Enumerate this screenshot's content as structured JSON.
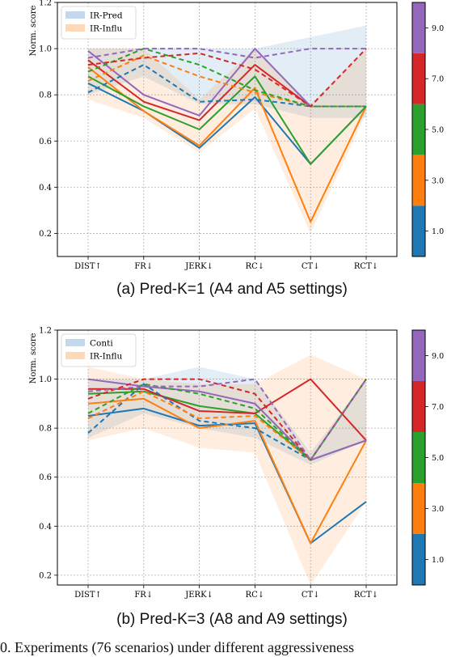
{
  "x_categories": [
    "DIST↑",
    "FR↓",
    "JERK↓",
    "RC↓",
    "CT↓",
    "RCT↓"
  ],
  "ylabel": "Norm. score",
  "colorbar": {
    "colors": [
      "#1f77b4",
      "#ff7f0e",
      "#2ca02c",
      "#d62728",
      "#9467bd"
    ],
    "tick_labels": [
      "1.0",
      "3.0",
      "5.0",
      "7.0",
      "9.0"
    ]
  },
  "captions": {
    "a": "(a) Pred-K=1 (A4 and A5 settings)",
    "b": "(b) Pred-K=3 (A8 and A9 settings)",
    "figure": "0.   Experiments (76 scenarios) under different aggressiveness"
  },
  "chart_data": [
    {
      "type": "line",
      "panel": "a",
      "ylim": [
        0.1,
        1.2
      ],
      "yticks": [
        0.2,
        0.4,
        0.6,
        0.8,
        1.0,
        1.2
      ],
      "grid": true,
      "legend": [
        {
          "label": "IR-Pred",
          "color": "#aac8e8",
          "style": "band"
        },
        {
          "label": "IR-Influ",
          "color": "#ffc89a",
          "style": "band"
        }
      ],
      "legend_position": "top-left",
      "bands": [
        {
          "name": "IR-Pred",
          "color": "#1f77b4",
          "upper": [
            1.0,
            1.0,
            1.0,
            1.0,
            1.05,
            1.1
          ],
          "lower": [
            0.8,
            0.88,
            0.76,
            0.76,
            0.7,
            0.7
          ]
        },
        {
          "name": "IR-Influ",
          "color": "#ff7f0e",
          "upper": [
            1.0,
            1.0,
            0.78,
            1.0,
            0.76,
            1.0
          ],
          "lower": [
            0.78,
            0.7,
            0.55,
            0.74,
            0.2,
            0.72
          ]
        }
      ],
      "series": [
        {
          "color": "#1f77b4",
          "dashed": false,
          "values": [
            0.85,
            0.73,
            0.57,
            0.79,
            0.5,
            0.75
          ]
        },
        {
          "color": "#ff7f0e",
          "dashed": false,
          "values": [
            0.92,
            0.73,
            0.58,
            0.83,
            0.25,
            0.75
          ]
        },
        {
          "color": "#2ca02c",
          "dashed": false,
          "values": [
            0.88,
            0.75,
            0.65,
            0.88,
            0.5,
            0.75
          ]
        },
        {
          "color": "#d62728",
          "dashed": false,
          "values": [
            0.95,
            0.77,
            0.69,
            0.93,
            0.75,
            0.75
          ]
        },
        {
          "color": "#9467bd",
          "dashed": false,
          "values": [
            0.99,
            0.8,
            0.71,
            1.0,
            0.75,
            0.75
          ]
        },
        {
          "color": "#1f77b4",
          "dashed": true,
          "values": [
            0.81,
            0.93,
            0.77,
            0.78,
            0.75,
            0.75
          ]
        },
        {
          "color": "#ff7f0e",
          "dashed": true,
          "values": [
            0.86,
            0.97,
            0.88,
            0.81,
            0.75,
            0.75
          ]
        },
        {
          "color": "#2ca02c",
          "dashed": true,
          "values": [
            0.9,
            1.0,
            0.93,
            0.82,
            0.75,
            0.75
          ]
        },
        {
          "color": "#d62728",
          "dashed": true,
          "values": [
            0.93,
            0.96,
            0.98,
            0.91,
            0.75,
            1.0
          ]
        },
        {
          "color": "#9467bd",
          "dashed": true,
          "values": [
            0.96,
            1.0,
            1.0,
            0.96,
            1.0,
            1.0
          ]
        }
      ]
    },
    {
      "type": "line",
      "panel": "b",
      "ylim": [
        0.16,
        1.2
      ],
      "yticks": [
        0.2,
        0.4,
        0.6,
        0.8,
        1.0,
        1.2
      ],
      "grid": true,
      "legend": [
        {
          "label": "Conti",
          "color": "#aac8e8",
          "style": "band"
        },
        {
          "label": "IR-Influ",
          "color": "#ffc89a",
          "style": "band"
        }
      ],
      "legend_position": "top-left",
      "bands": [
        {
          "name": "Conti",
          "color": "#1f77b4",
          "upper": [
            1.0,
            1.0,
            1.05,
            1.0,
            0.7,
            1.0
          ],
          "lower": [
            0.76,
            0.86,
            0.8,
            0.76,
            0.65,
            0.75
          ]
        },
        {
          "name": "IR-Influ",
          "color": "#ff7f0e",
          "upper": [
            1.05,
            1.0,
            0.98,
            0.98,
            1.1,
            1.0
          ],
          "lower": [
            0.75,
            0.8,
            0.72,
            0.7,
            0.16,
            0.5
          ]
        }
      ],
      "series": [
        {
          "color": "#1f77b4",
          "dashed": false,
          "values": [
            0.85,
            0.88,
            0.81,
            0.82,
            0.33,
            0.5
          ]
        },
        {
          "color": "#ff7f0e",
          "dashed": false,
          "values": [
            0.9,
            0.92,
            0.8,
            0.83,
            0.33,
            0.75
          ]
        },
        {
          "color": "#2ca02c",
          "dashed": false,
          "values": [
            0.94,
            0.95,
            0.89,
            0.86,
            0.67,
            0.75
          ]
        },
        {
          "color": "#d62728",
          "dashed": false,
          "values": [
            0.96,
            0.96,
            0.87,
            0.86,
            1.0,
            0.75
          ]
        },
        {
          "color": "#9467bd",
          "dashed": false,
          "values": [
            1.0,
            0.97,
            0.95,
            0.9,
            0.67,
            0.75
          ]
        },
        {
          "color": "#1f77b4",
          "dashed": true,
          "values": [
            0.78,
            0.98,
            0.83,
            0.8,
            0.67,
            1.0
          ]
        },
        {
          "color": "#ff7f0e",
          "dashed": true,
          "values": [
            0.84,
            0.95,
            0.84,
            0.85,
            0.67,
            1.0
          ]
        },
        {
          "color": "#2ca02c",
          "dashed": true,
          "values": [
            0.86,
            0.98,
            0.94,
            0.88,
            0.67,
            1.0
          ]
        },
        {
          "color": "#d62728",
          "dashed": true,
          "values": [
            0.92,
            1.0,
            1.0,
            0.94,
            0.67,
            1.0
          ]
        },
        {
          "color": "#9467bd",
          "dashed": true,
          "values": [
            0.95,
            0.97,
            0.97,
            1.0,
            0.67,
            1.0
          ]
        }
      ]
    }
  ]
}
